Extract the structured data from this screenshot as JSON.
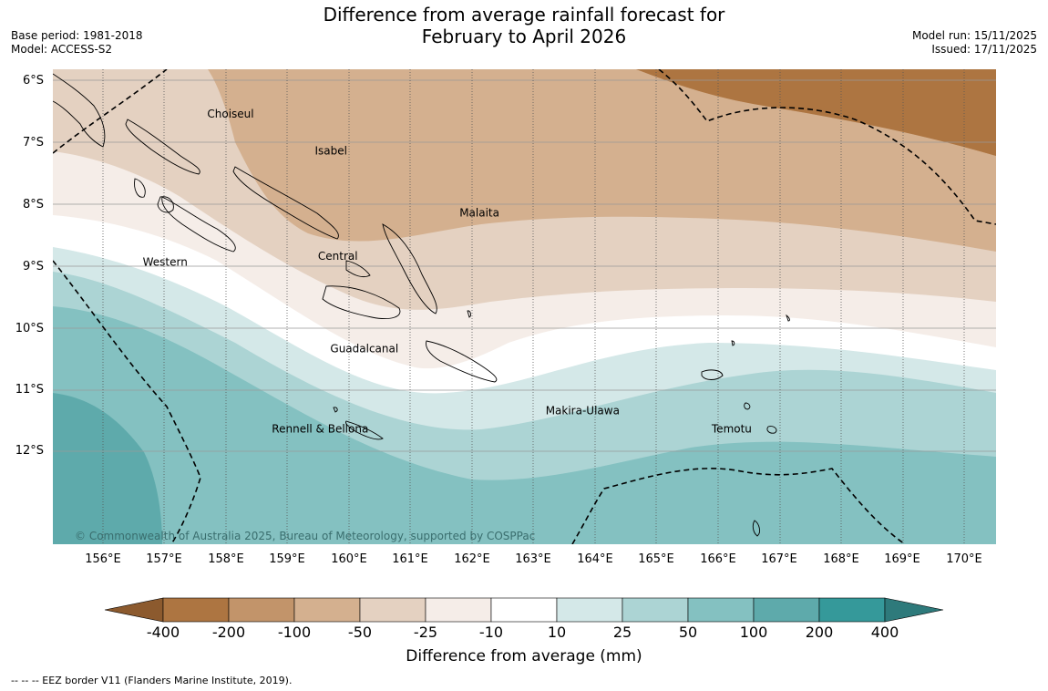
{
  "title": {
    "line1": "Difference from average rainfall forecast for",
    "line2": "February to April 2026"
  },
  "meta": {
    "base_period": "Base period: 1981-2018",
    "model": "Model: ACCESS-S2",
    "model_run": "Model run: 15/11/2025",
    "issued": "Issued: 17/11/2025"
  },
  "axes": {
    "lat_labels": [
      "6°S",
      "7°S",
      "8°S",
      "9°S",
      "10°S",
      "11°S",
      "12°S"
    ],
    "lon_labels": [
      "156°E",
      "157°E",
      "158°E",
      "159°E",
      "160°E",
      "161°E",
      "162°E",
      "163°E",
      "164°E",
      "165°E",
      "166°E",
      "167°E",
      "168°E",
      "169°E",
      "170°E"
    ]
  },
  "regions": [
    {
      "name": "Choiseul",
      "lon": 157.7,
      "lat": -6.6
    },
    {
      "name": "Isabel",
      "lon": 159.45,
      "lat": -7.2
    },
    {
      "name": "Malaita",
      "lon": 161.8,
      "lat": -8.2
    },
    {
      "name": "Western",
      "lon": 156.65,
      "lat": -9.0
    },
    {
      "name": "Central",
      "lon": 159.5,
      "lat": -8.9
    },
    {
      "name": "Guadalcanal",
      "lon": 159.7,
      "lat": -10.4
    },
    {
      "name": "Makira-Ulawa",
      "lon": 163.2,
      "lat": -11.4
    },
    {
      "name": "Rennell & Bellona",
      "lon": 158.75,
      "lat": -11.7
    },
    {
      "name": "Temotu",
      "lon": 165.9,
      "lat": -11.7
    }
  ],
  "copyright": "© Commonwealth of Australia 2025, Bureau of Meteorology, supported by COSPPac",
  "colorbar": {
    "title": "Difference from average (mm)",
    "labels": [
      "-400",
      "-200",
      "-100",
      "-50",
      "-25",
      "-10",
      "10",
      "25",
      "50",
      "100",
      "200",
      "400"
    ],
    "colors": [
      "#8c5a2e",
      "#ad7541",
      "#c2946a",
      "#d4b08f",
      "#e4d1c1",
      "#f5ede8",
      "#ffffff",
      "#d4e8e8",
      "#acd4d4",
      "#84c1c1",
      "#5eaaab",
      "#35999a",
      "#2e7a7b"
    ]
  },
  "footnote": "--  --  -- EEZ border V11 (Flanders Marine Institute, 2019)."
}
